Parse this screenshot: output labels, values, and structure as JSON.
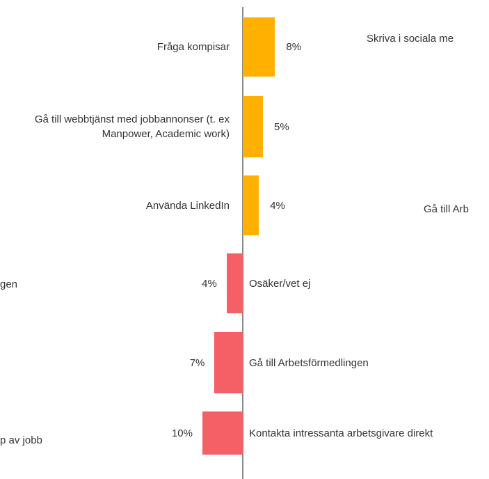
{
  "chart_data": [
    {
      "type": "bar",
      "direction": "right",
      "color": "#ffb000",
      "categories": [
        "Fråga kompisar",
        "Gå till webbtjänst med jobbannonser (t. ex Manpower, Academic work)",
        "Använda LinkedIn"
      ],
      "values": [
        8,
        5,
        4
      ],
      "value_labels": [
        "8%",
        "5%",
        "4%"
      ]
    },
    {
      "type": "bar",
      "direction": "left",
      "color": "#f46065",
      "categories": [
        "Osäker/vet ej",
        "Gå till Arbetsförmedlingen",
        "Kontakta intressanta arbetsgivare direkt"
      ],
      "values": [
        4,
        7,
        10
      ],
      "value_labels": [
        "4%",
        "7%",
        "10%"
      ]
    }
  ],
  "annotations": [
    "Skriva i sociala me",
    "Gå till Arb",
    "gen",
    "p av jobb"
  ]
}
